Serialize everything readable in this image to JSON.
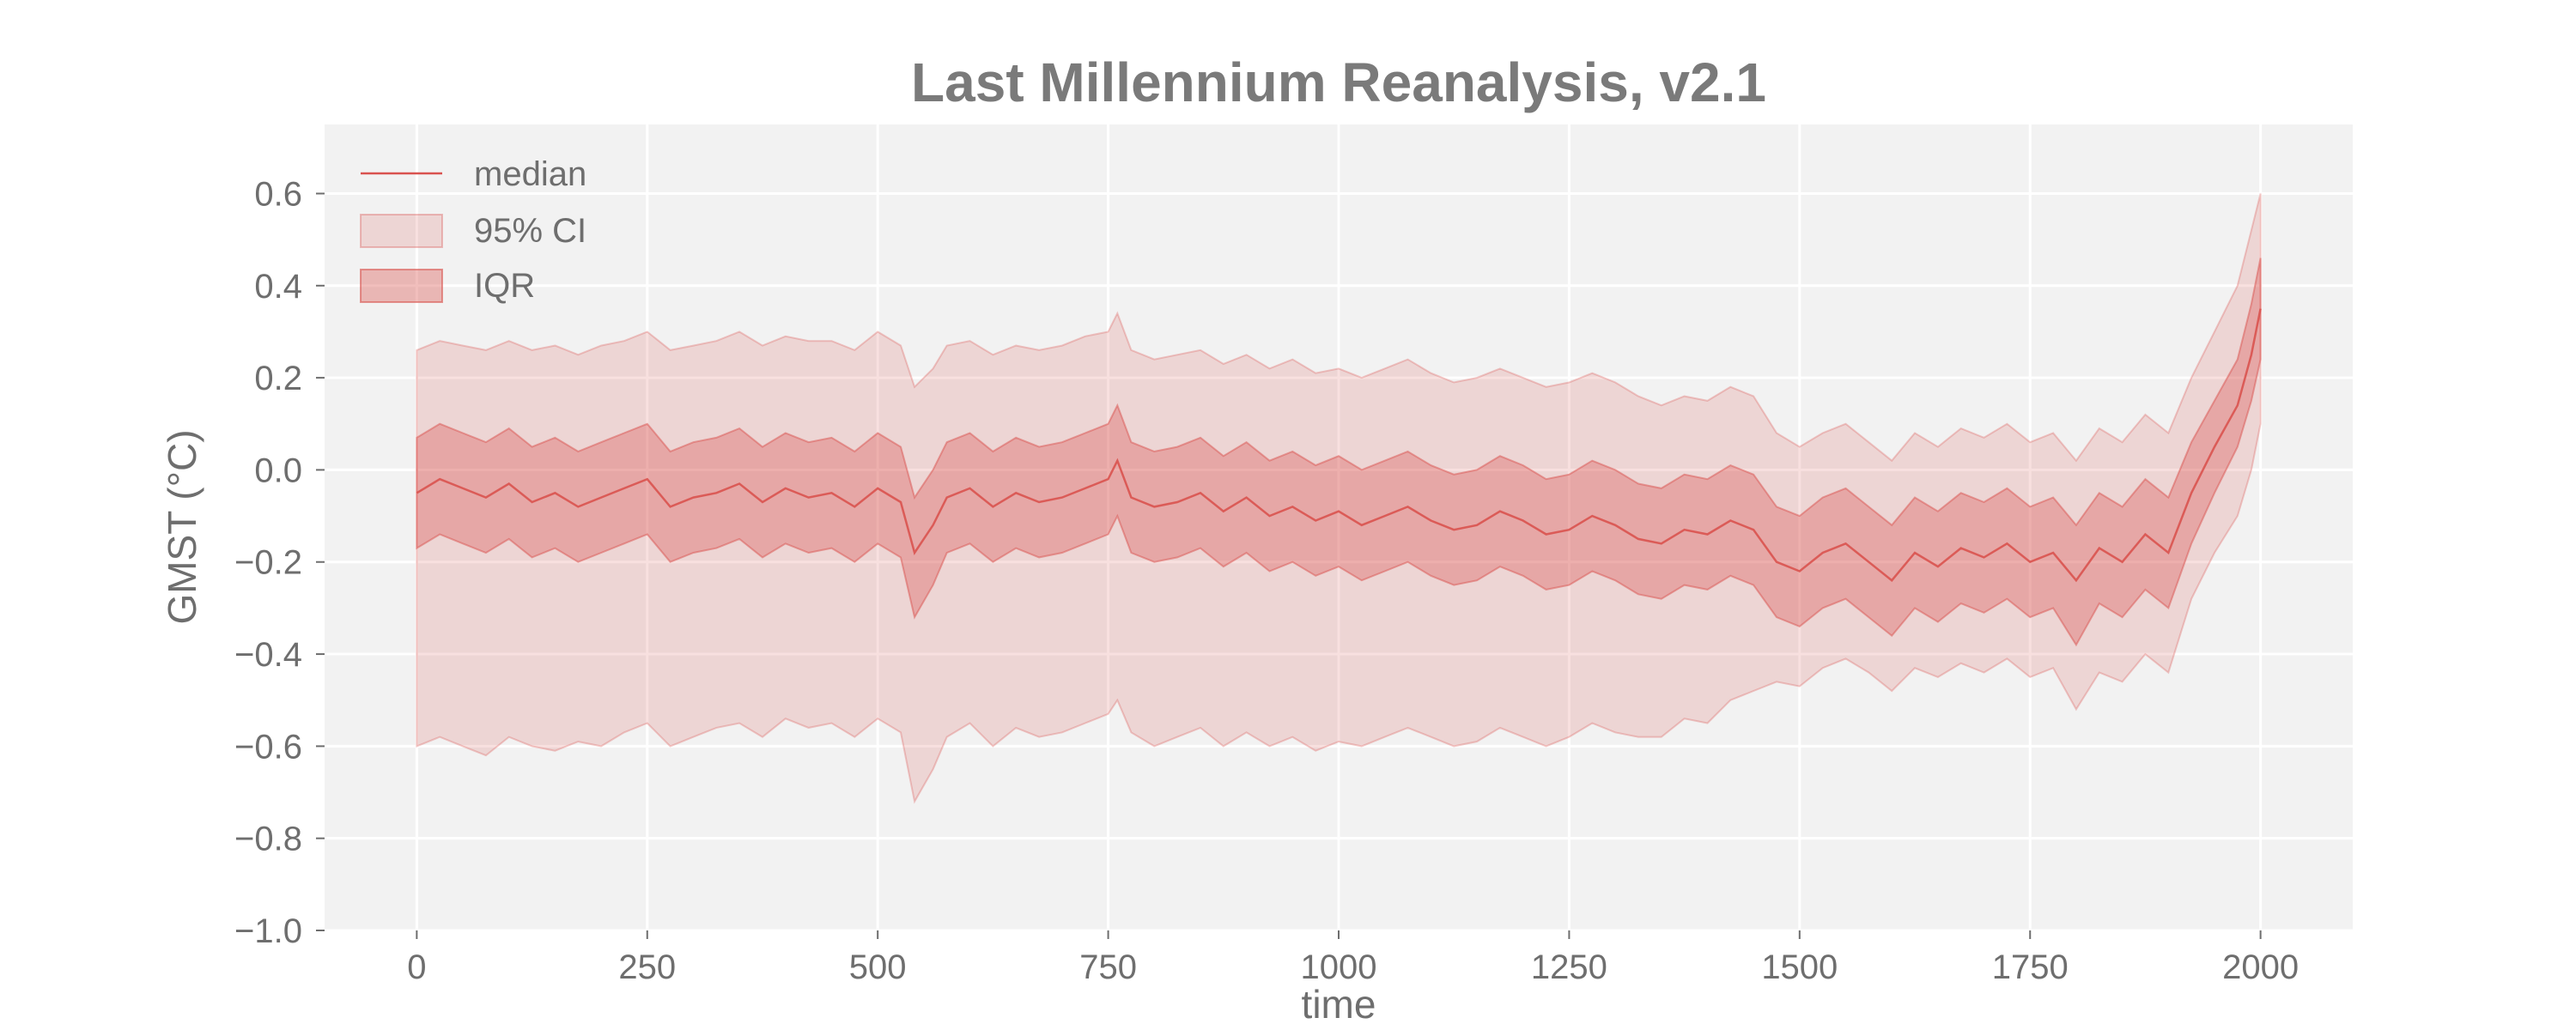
{
  "chart_data": {
    "type": "area",
    "title": "Last Millennium Reanalysis, v2.1",
    "xlabel": "time",
    "ylabel": "GMST (°C)",
    "xlim": [
      -100,
      2100
    ],
    "ylim": [
      -1.0,
      0.75
    ],
    "xticks": [
      0,
      250,
      500,
      750,
      1000,
      1250,
      1500,
      1750,
      2000
    ],
    "yticks": [
      0.6,
      0.4,
      0.2,
      0.0,
      -0.2,
      -0.4,
      -0.6,
      -0.8,
      -1.0
    ],
    "xtick_labels": [
      "0",
      "250",
      "500",
      "750",
      "1000",
      "1250",
      "1500",
      "1750",
      "2000"
    ],
    "ytick_labels": [
      "0.6",
      "0.4",
      "0.2",
      "0.0",
      "−0.2",
      "−0.4",
      "−0.6",
      "−0.8",
      "−1.0"
    ],
    "grid": true,
    "legend_position": "top-left",
    "legend": [
      "median",
      "95% CI",
      "IQR"
    ],
    "colors": {
      "accent": "#d9534f",
      "plot_background": "#f2f2f2",
      "grid": "#ffffff",
      "text": "#6e6e6e"
    },
    "series": [
      {
        "name": "median",
        "x": [
          0,
          25,
          50,
          75,
          100,
          125,
          150,
          175,
          200,
          225,
          250,
          275,
          300,
          325,
          350,
          375,
          400,
          425,
          450,
          475,
          500,
          525,
          540,
          560,
          575,
          600,
          625,
          650,
          675,
          700,
          725,
          750,
          760,
          775,
          800,
          825,
          850,
          875,
          900,
          925,
          950,
          975,
          1000,
          1025,
          1050,
          1075,
          1100,
          1125,
          1150,
          1175,
          1200,
          1225,
          1250,
          1275,
          1300,
          1325,
          1350,
          1375,
          1400,
          1425,
          1450,
          1475,
          1500,
          1525,
          1550,
          1575,
          1600,
          1625,
          1650,
          1675,
          1700,
          1725,
          1750,
          1775,
          1800,
          1825,
          1850,
          1875,
          1900,
          1925,
          1950,
          1975,
          1990,
          2000
        ],
        "values": [
          -0.05,
          -0.02,
          -0.04,
          -0.06,
          -0.03,
          -0.07,
          -0.05,
          -0.08,
          -0.06,
          -0.04,
          -0.02,
          -0.08,
          -0.06,
          -0.05,
          -0.03,
          -0.07,
          -0.04,
          -0.06,
          -0.05,
          -0.08,
          -0.04,
          -0.07,
          -0.18,
          -0.12,
          -0.06,
          -0.04,
          -0.08,
          -0.05,
          -0.07,
          -0.06,
          -0.04,
          -0.02,
          0.02,
          -0.06,
          -0.08,
          -0.07,
          -0.05,
          -0.09,
          -0.06,
          -0.1,
          -0.08,
          -0.11,
          -0.09,
          -0.12,
          -0.1,
          -0.08,
          -0.11,
          -0.13,
          -0.12,
          -0.09,
          -0.11,
          -0.14,
          -0.13,
          -0.1,
          -0.12,
          -0.15,
          -0.16,
          -0.13,
          -0.14,
          -0.11,
          -0.13,
          -0.2,
          -0.22,
          -0.18,
          -0.16,
          -0.2,
          -0.24,
          -0.18,
          -0.21,
          -0.17,
          -0.19,
          -0.16,
          -0.2,
          -0.18,
          -0.24,
          -0.17,
          -0.2,
          -0.14,
          -0.18,
          -0.05,
          0.05,
          0.14,
          0.25,
          0.35
        ]
      },
      {
        "name": "95% CI",
        "x": [
          0,
          25,
          50,
          75,
          100,
          125,
          150,
          175,
          200,
          225,
          250,
          275,
          300,
          325,
          350,
          375,
          400,
          425,
          450,
          475,
          500,
          525,
          540,
          560,
          575,
          600,
          625,
          650,
          675,
          700,
          725,
          750,
          760,
          775,
          800,
          825,
          850,
          875,
          900,
          925,
          950,
          975,
          1000,
          1025,
          1050,
          1075,
          1100,
          1125,
          1150,
          1175,
          1200,
          1225,
          1250,
          1275,
          1300,
          1325,
          1350,
          1375,
          1400,
          1425,
          1450,
          1475,
          1500,
          1525,
          1550,
          1575,
          1600,
          1625,
          1650,
          1675,
          1700,
          1725,
          1750,
          1775,
          1800,
          1825,
          1850,
          1875,
          1900,
          1925,
          1950,
          1975,
          1990,
          2000
        ],
        "lower": [
          -0.6,
          -0.58,
          -0.6,
          -0.62,
          -0.58,
          -0.6,
          -0.61,
          -0.59,
          -0.6,
          -0.57,
          -0.55,
          -0.6,
          -0.58,
          -0.56,
          -0.55,
          -0.58,
          -0.54,
          -0.56,
          -0.55,
          -0.58,
          -0.54,
          -0.57,
          -0.72,
          -0.65,
          -0.58,
          -0.55,
          -0.6,
          -0.56,
          -0.58,
          -0.57,
          -0.55,
          -0.53,
          -0.5,
          -0.57,
          -0.6,
          -0.58,
          -0.56,
          -0.6,
          -0.57,
          -0.6,
          -0.58,
          -0.61,
          -0.59,
          -0.6,
          -0.58,
          -0.56,
          -0.58,
          -0.6,
          -0.59,
          -0.56,
          -0.58,
          -0.6,
          -0.58,
          -0.55,
          -0.57,
          -0.58,
          -0.58,
          -0.54,
          -0.55,
          -0.5,
          -0.48,
          -0.46,
          -0.47,
          -0.43,
          -0.41,
          -0.44,
          -0.48,
          -0.43,
          -0.45,
          -0.42,
          -0.44,
          -0.41,
          -0.45,
          -0.43,
          -0.52,
          -0.44,
          -0.46,
          -0.4,
          -0.44,
          -0.28,
          -0.18,
          -0.1,
          0.0,
          0.1
        ],
        "upper": [
          0.26,
          0.28,
          0.27,
          0.26,
          0.28,
          0.26,
          0.27,
          0.25,
          0.27,
          0.28,
          0.3,
          0.26,
          0.27,
          0.28,
          0.3,
          0.27,
          0.29,
          0.28,
          0.28,
          0.26,
          0.3,
          0.27,
          0.18,
          0.22,
          0.27,
          0.28,
          0.25,
          0.27,
          0.26,
          0.27,
          0.29,
          0.3,
          0.34,
          0.26,
          0.24,
          0.25,
          0.26,
          0.23,
          0.25,
          0.22,
          0.24,
          0.21,
          0.22,
          0.2,
          0.22,
          0.24,
          0.21,
          0.19,
          0.2,
          0.22,
          0.2,
          0.18,
          0.19,
          0.21,
          0.19,
          0.16,
          0.14,
          0.16,
          0.15,
          0.18,
          0.16,
          0.08,
          0.05,
          0.08,
          0.1,
          0.06,
          0.02,
          0.08,
          0.05,
          0.09,
          0.07,
          0.1,
          0.06,
          0.08,
          0.02,
          0.09,
          0.06,
          0.12,
          0.08,
          0.2,
          0.3,
          0.4,
          0.52,
          0.6
        ]
      },
      {
        "name": "IQR",
        "x": [
          0,
          25,
          50,
          75,
          100,
          125,
          150,
          175,
          200,
          225,
          250,
          275,
          300,
          325,
          350,
          375,
          400,
          425,
          450,
          475,
          500,
          525,
          540,
          560,
          575,
          600,
          625,
          650,
          675,
          700,
          725,
          750,
          760,
          775,
          800,
          825,
          850,
          875,
          900,
          925,
          950,
          975,
          1000,
          1025,
          1050,
          1075,
          1100,
          1125,
          1150,
          1175,
          1200,
          1225,
          1250,
          1275,
          1300,
          1325,
          1350,
          1375,
          1400,
          1425,
          1450,
          1475,
          1500,
          1525,
          1550,
          1575,
          1600,
          1625,
          1650,
          1675,
          1700,
          1725,
          1750,
          1775,
          1800,
          1825,
          1850,
          1875,
          1900,
          1925,
          1950,
          1975,
          1990,
          2000
        ],
        "lower": [
          -0.17,
          -0.14,
          -0.16,
          -0.18,
          -0.15,
          -0.19,
          -0.17,
          -0.2,
          -0.18,
          -0.16,
          -0.14,
          -0.2,
          -0.18,
          -0.17,
          -0.15,
          -0.19,
          -0.16,
          -0.18,
          -0.17,
          -0.2,
          -0.16,
          -0.19,
          -0.32,
          -0.25,
          -0.18,
          -0.16,
          -0.2,
          -0.17,
          -0.19,
          -0.18,
          -0.16,
          -0.14,
          -0.1,
          -0.18,
          -0.2,
          -0.19,
          -0.17,
          -0.21,
          -0.18,
          -0.22,
          -0.2,
          -0.23,
          -0.21,
          -0.24,
          -0.22,
          -0.2,
          -0.23,
          -0.25,
          -0.24,
          -0.21,
          -0.23,
          -0.26,
          -0.25,
          -0.22,
          -0.24,
          -0.27,
          -0.28,
          -0.25,
          -0.26,
          -0.23,
          -0.25,
          -0.32,
          -0.34,
          -0.3,
          -0.28,
          -0.32,
          -0.36,
          -0.3,
          -0.33,
          -0.29,
          -0.31,
          -0.28,
          -0.32,
          -0.3,
          -0.38,
          -0.29,
          -0.32,
          -0.26,
          -0.3,
          -0.16,
          -0.05,
          0.05,
          0.15,
          0.24
        ],
        "upper": [
          0.07,
          0.1,
          0.08,
          0.06,
          0.09,
          0.05,
          0.07,
          0.04,
          0.06,
          0.08,
          0.1,
          0.04,
          0.06,
          0.07,
          0.09,
          0.05,
          0.08,
          0.06,
          0.07,
          0.04,
          0.08,
          0.05,
          -0.06,
          0.0,
          0.06,
          0.08,
          0.04,
          0.07,
          0.05,
          0.06,
          0.08,
          0.1,
          0.14,
          0.06,
          0.04,
          0.05,
          0.07,
          0.03,
          0.06,
          0.02,
          0.04,
          0.01,
          0.03,
          0.0,
          0.02,
          0.04,
          0.01,
          -0.01,
          0.0,
          0.03,
          0.01,
          -0.02,
          -0.01,
          0.02,
          0.0,
          -0.03,
          -0.04,
          -0.01,
          -0.02,
          0.01,
          -0.01,
          -0.08,
          -0.1,
          -0.06,
          -0.04,
          -0.08,
          -0.12,
          -0.06,
          -0.09,
          -0.05,
          -0.07,
          -0.04,
          -0.08,
          -0.06,
          -0.12,
          -0.05,
          -0.08,
          -0.02,
          -0.06,
          0.06,
          0.15,
          0.24,
          0.36,
          0.46
        ]
      }
    ]
  }
}
